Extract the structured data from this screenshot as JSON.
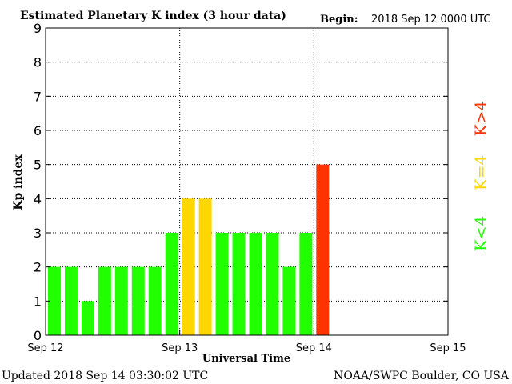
{
  "header": {
    "title": "Estimated Planetary K index (3 hour data)",
    "begin_label": "Begin:",
    "begin_value": "2018 Sep 12 0000 UTC"
  },
  "footer": {
    "updated": "Updated 2018 Sep 14 03:30:02 UTC",
    "source": "NOAA/SWPC Boulder, CO USA"
  },
  "legend": {
    "high": {
      "label": "K>4",
      "color": "#ff3300"
    },
    "mid": {
      "label": "K=4",
      "color": "#ffd700"
    },
    "low": {
      "label": "K<4",
      "color": "#22ff00"
    }
  },
  "chart_data": {
    "type": "bar",
    "title": "Estimated Planetary K index (3 hour data)",
    "xlabel": "Universal Time",
    "ylabel": "Kp index",
    "ylim": [
      0,
      9
    ],
    "yticks": [
      0,
      1,
      2,
      3,
      4,
      5,
      6,
      7,
      8,
      9
    ],
    "xticks": [
      "Sep 12",
      "Sep 13",
      "Sep 14",
      "Sep 15"
    ],
    "slots_per_day": 8,
    "total_slots": 24,
    "grid": true,
    "series": [
      {
        "values": [
          2,
          2,
          1,
          2,
          2,
          2,
          2,
          3,
          4,
          4,
          3,
          3,
          3,
          3,
          2,
          3,
          5
        ]
      }
    ],
    "colors": {
      "low": "#22ff00",
      "mid": "#ffd700",
      "high": "#ff3300"
    }
  }
}
